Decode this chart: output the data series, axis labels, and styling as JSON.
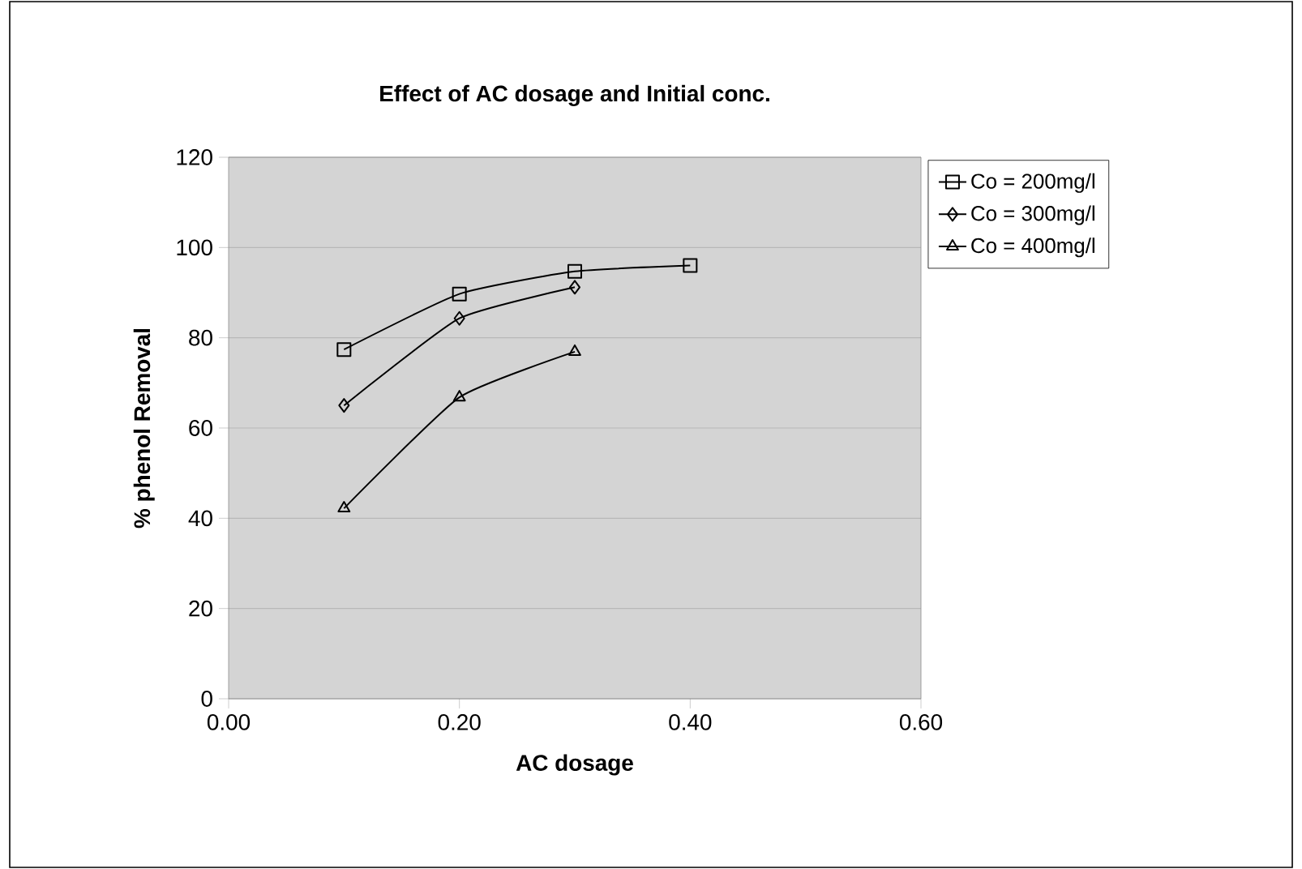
{
  "chart_data": {
    "type": "line",
    "title": "Effect of AC dosage and Initial conc.",
    "xlabel": "AC dosage",
    "ylabel": "% phenol Removal",
    "xlim": [
      0,
      0.6
    ],
    "xticks": [
      {
        "value": 0,
        "label": "0.00"
      },
      {
        "value": 0.2,
        "label": "0.20"
      },
      {
        "value": 0.4,
        "label": "0.40"
      },
      {
        "value": 0.6,
        "label": "0.60"
      }
    ],
    "ylim": [
      0,
      120
    ],
    "yticks": [
      0,
      20,
      40,
      60,
      80,
      100,
      120
    ],
    "grid": "y",
    "legend": "right",
    "series": [
      {
        "name": "Co = 200mg/l",
        "color": "#000000",
        "marker": "square",
        "x": [
          0.1,
          0.2,
          0.3,
          0.4
        ],
        "values": [
          77.4,
          89.7,
          94.7,
          96.0
        ]
      },
      {
        "name": "Co = 300mg/l",
        "color": "#000000",
        "marker": "diamond",
        "x": [
          0.1,
          0.2,
          0.3
        ],
        "values": [
          65.0,
          84.3,
          91.2
        ]
      },
      {
        "name": "Co = 400mg/l",
        "color": "#000000",
        "marker": "triangle",
        "x": [
          0.1,
          0.2,
          0.3
        ],
        "values": [
          42.2,
          66.8,
          76.9
        ]
      }
    ]
  }
}
